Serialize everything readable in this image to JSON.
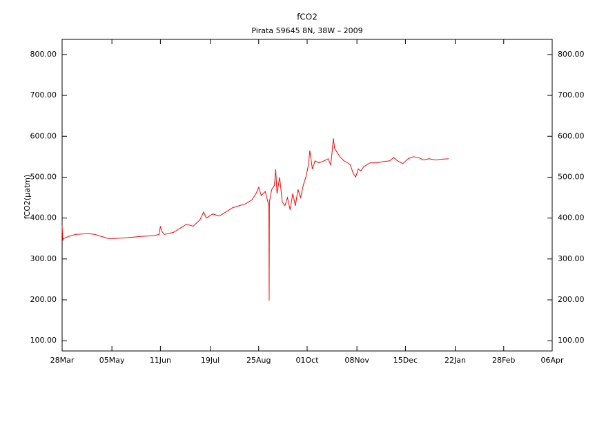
{
  "chart_data": {
    "type": "line",
    "title": "fCO2",
    "subtitle": "Pirata 59645 8N, 38W – 2009",
    "y_label": "fCO2(µatm)",
    "x": [
      0,
      0.5,
      1,
      5,
      10,
      20,
      25,
      30,
      35,
      40,
      50,
      60,
      70,
      74,
      75,
      76,
      78,
      85,
      90,
      95,
      100,
      105,
      108,
      110,
      115,
      120,
      125,
      130,
      135,
      140,
      145,
      148,
      150,
      152,
      155,
      157.8,
      158,
      158.2,
      160,
      162,
      163,
      164,
      166,
      168,
      170,
      172,
      174,
      176,
      178,
      180,
      182,
      184,
      186,
      188,
      189,
      191,
      193,
      196,
      200,
      203,
      205,
      206,
      207,
      208,
      210,
      212,
      215,
      218,
      220,
      222,
      224,
      226,
      228,
      230,
      235,
      240,
      245,
      250,
      253,
      256,
      260,
      264,
      268,
      272,
      276,
      280,
      285,
      290,
      295
    ],
    "series": [
      {
        "name": "fCO2",
        "color": "#ff0000",
        "values": [
          382,
          345,
          350,
          355,
          360,
          362,
          360,
          355,
          350,
          350,
          352,
          355,
          357,
          360,
          380,
          368,
          360,
          365,
          375,
          385,
          380,
          395,
          415,
          400,
          410,
          405,
          415,
          425,
          430,
          435,
          445,
          460,
          475,
          455,
          465,
          430,
          198,
          440,
          470,
          480,
          519,
          460,
          500,
          440,
          430,
          450,
          420,
          460,
          430,
          470,
          450,
          480,
          500,
          530,
          565,
          520,
          540,
          535,
          540,
          545,
          530,
          560,
          595,
          570,
          560,
          550,
          540,
          535,
          530,
          510,
          500,
          520,
          515,
          525,
          535,
          535,
          538,
          540,
          548,
          540,
          533,
          545,
          550,
          548,
          542,
          545,
          542,
          544,
          545
        ]
      }
    ],
    "xlim": [
      0,
      374
    ],
    "ylim": [
      75,
      837
    ],
    "xticks": [
      {
        "value": 0,
        "label": "28Mar"
      },
      {
        "value": 38,
        "label": "05May"
      },
      {
        "value": 75,
        "label": "11Jun"
      },
      {
        "value": 113,
        "label": "19Jul"
      },
      {
        "value": 150,
        "label": "25Aug"
      },
      {
        "value": 187,
        "label": "01Oct"
      },
      {
        "value": 225,
        "label": "08Nov"
      },
      {
        "value": 262,
        "label": "15Dec"
      },
      {
        "value": 300,
        "label": "22Jan"
      },
      {
        "value": 337,
        "label": "28Feb"
      },
      {
        "value": 374,
        "label": "06Apr"
      }
    ],
    "yticks": [
      {
        "value": 100,
        "label": "100.00"
      },
      {
        "value": 200,
        "label": "200.00"
      },
      {
        "value": 300,
        "label": "300.00"
      },
      {
        "value": 400,
        "label": "400.00"
      },
      {
        "value": 500,
        "label": "500.00"
      },
      {
        "value": 600,
        "label": "600.00"
      },
      {
        "value": 700,
        "label": "700.00"
      },
      {
        "value": 800,
        "label": "800.00"
      }
    ]
  }
}
